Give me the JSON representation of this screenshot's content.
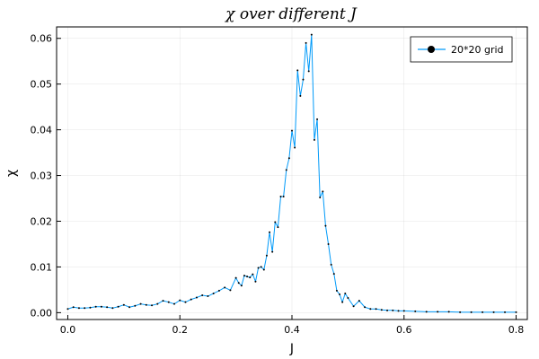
{
  "chart_data": {
    "type": "line",
    "title": "χ over different J",
    "xlabel": "J",
    "ylabel": "χ",
    "xlim": [
      -0.02,
      0.82
    ],
    "ylim": [
      -0.0015,
      0.0625
    ],
    "xticks": [
      0.0,
      0.2,
      0.4,
      0.6,
      0.8
    ],
    "xtick_labels": [
      "0.0",
      "0.2",
      "0.4",
      "0.6",
      "0.8"
    ],
    "yticks": [
      0.0,
      0.01,
      0.02,
      0.03,
      0.04,
      0.05,
      0.06
    ],
    "ytick_labels": [
      "0.00",
      "0.01",
      "0.02",
      "0.03",
      "0.04",
      "0.05",
      "0.06"
    ],
    "grid": true,
    "legend_position": "top-right",
    "series": [
      {
        "name": "20*20 grid",
        "color": "#009AF9",
        "marker": "circle",
        "x": [
          0.0,
          0.01,
          0.02,
          0.03,
          0.04,
          0.05,
          0.06,
          0.07,
          0.08,
          0.09,
          0.1,
          0.11,
          0.12,
          0.13,
          0.14,
          0.15,
          0.16,
          0.17,
          0.18,
          0.19,
          0.2,
          0.21,
          0.22,
          0.23,
          0.24,
          0.25,
          0.26,
          0.27,
          0.28,
          0.29,
          0.3,
          0.305,
          0.31,
          0.315,
          0.32,
          0.325,
          0.33,
          0.335,
          0.34,
          0.345,
          0.35,
          0.355,
          0.36,
          0.365,
          0.37,
          0.375,
          0.38,
          0.385,
          0.39,
          0.395,
          0.4,
          0.405,
          0.41,
          0.415,
          0.42,
          0.425,
          0.43,
          0.435,
          0.44,
          0.445,
          0.45,
          0.455,
          0.46,
          0.465,
          0.47,
          0.475,
          0.48,
          0.485,
          0.49,
          0.495,
          0.5,
          0.51,
          0.52,
          0.53,
          0.54,
          0.55,
          0.56,
          0.57,
          0.58,
          0.59,
          0.6,
          0.62,
          0.64,
          0.66,
          0.68,
          0.7,
          0.72,
          0.74,
          0.76,
          0.78,
          0.8
        ],
        "y": [
          0.0008,
          0.0012,
          0.001,
          0.001,
          0.0011,
          0.0013,
          0.0013,
          0.0012,
          0.001,
          0.0013,
          0.0017,
          0.0012,
          0.0015,
          0.0019,
          0.0017,
          0.0016,
          0.0019,
          0.0026,
          0.0023,
          0.0019,
          0.0027,
          0.0023,
          0.0029,
          0.0033,
          0.0038,
          0.0036,
          0.0042,
          0.0048,
          0.0055,
          0.0049,
          0.0076,
          0.0065,
          0.0059,
          0.0081,
          0.0079,
          0.0077,
          0.0084,
          0.0068,
          0.0098,
          0.01,
          0.0094,
          0.0125,
          0.0176,
          0.0133,
          0.0198,
          0.0187,
          0.0254,
          0.0254,
          0.0312,
          0.0338,
          0.0398,
          0.0361,
          0.053,
          0.0474,
          0.051,
          0.059,
          0.0528,
          0.0608,
          0.0378,
          0.0423,
          0.0252,
          0.0265,
          0.019,
          0.015,
          0.0105,
          0.0085,
          0.0048,
          0.004,
          0.0023,
          0.0042,
          0.0032,
          0.0014,
          0.0026,
          0.0012,
          0.0008,
          0.0008,
          0.0006,
          0.0005,
          0.0005,
          0.0004,
          0.0004,
          0.0003,
          0.0002,
          0.0002,
          0.0002,
          0.0001,
          0.0001,
          0.0001,
          0.0001,
          0.0001,
          0.0001
        ]
      }
    ]
  }
}
